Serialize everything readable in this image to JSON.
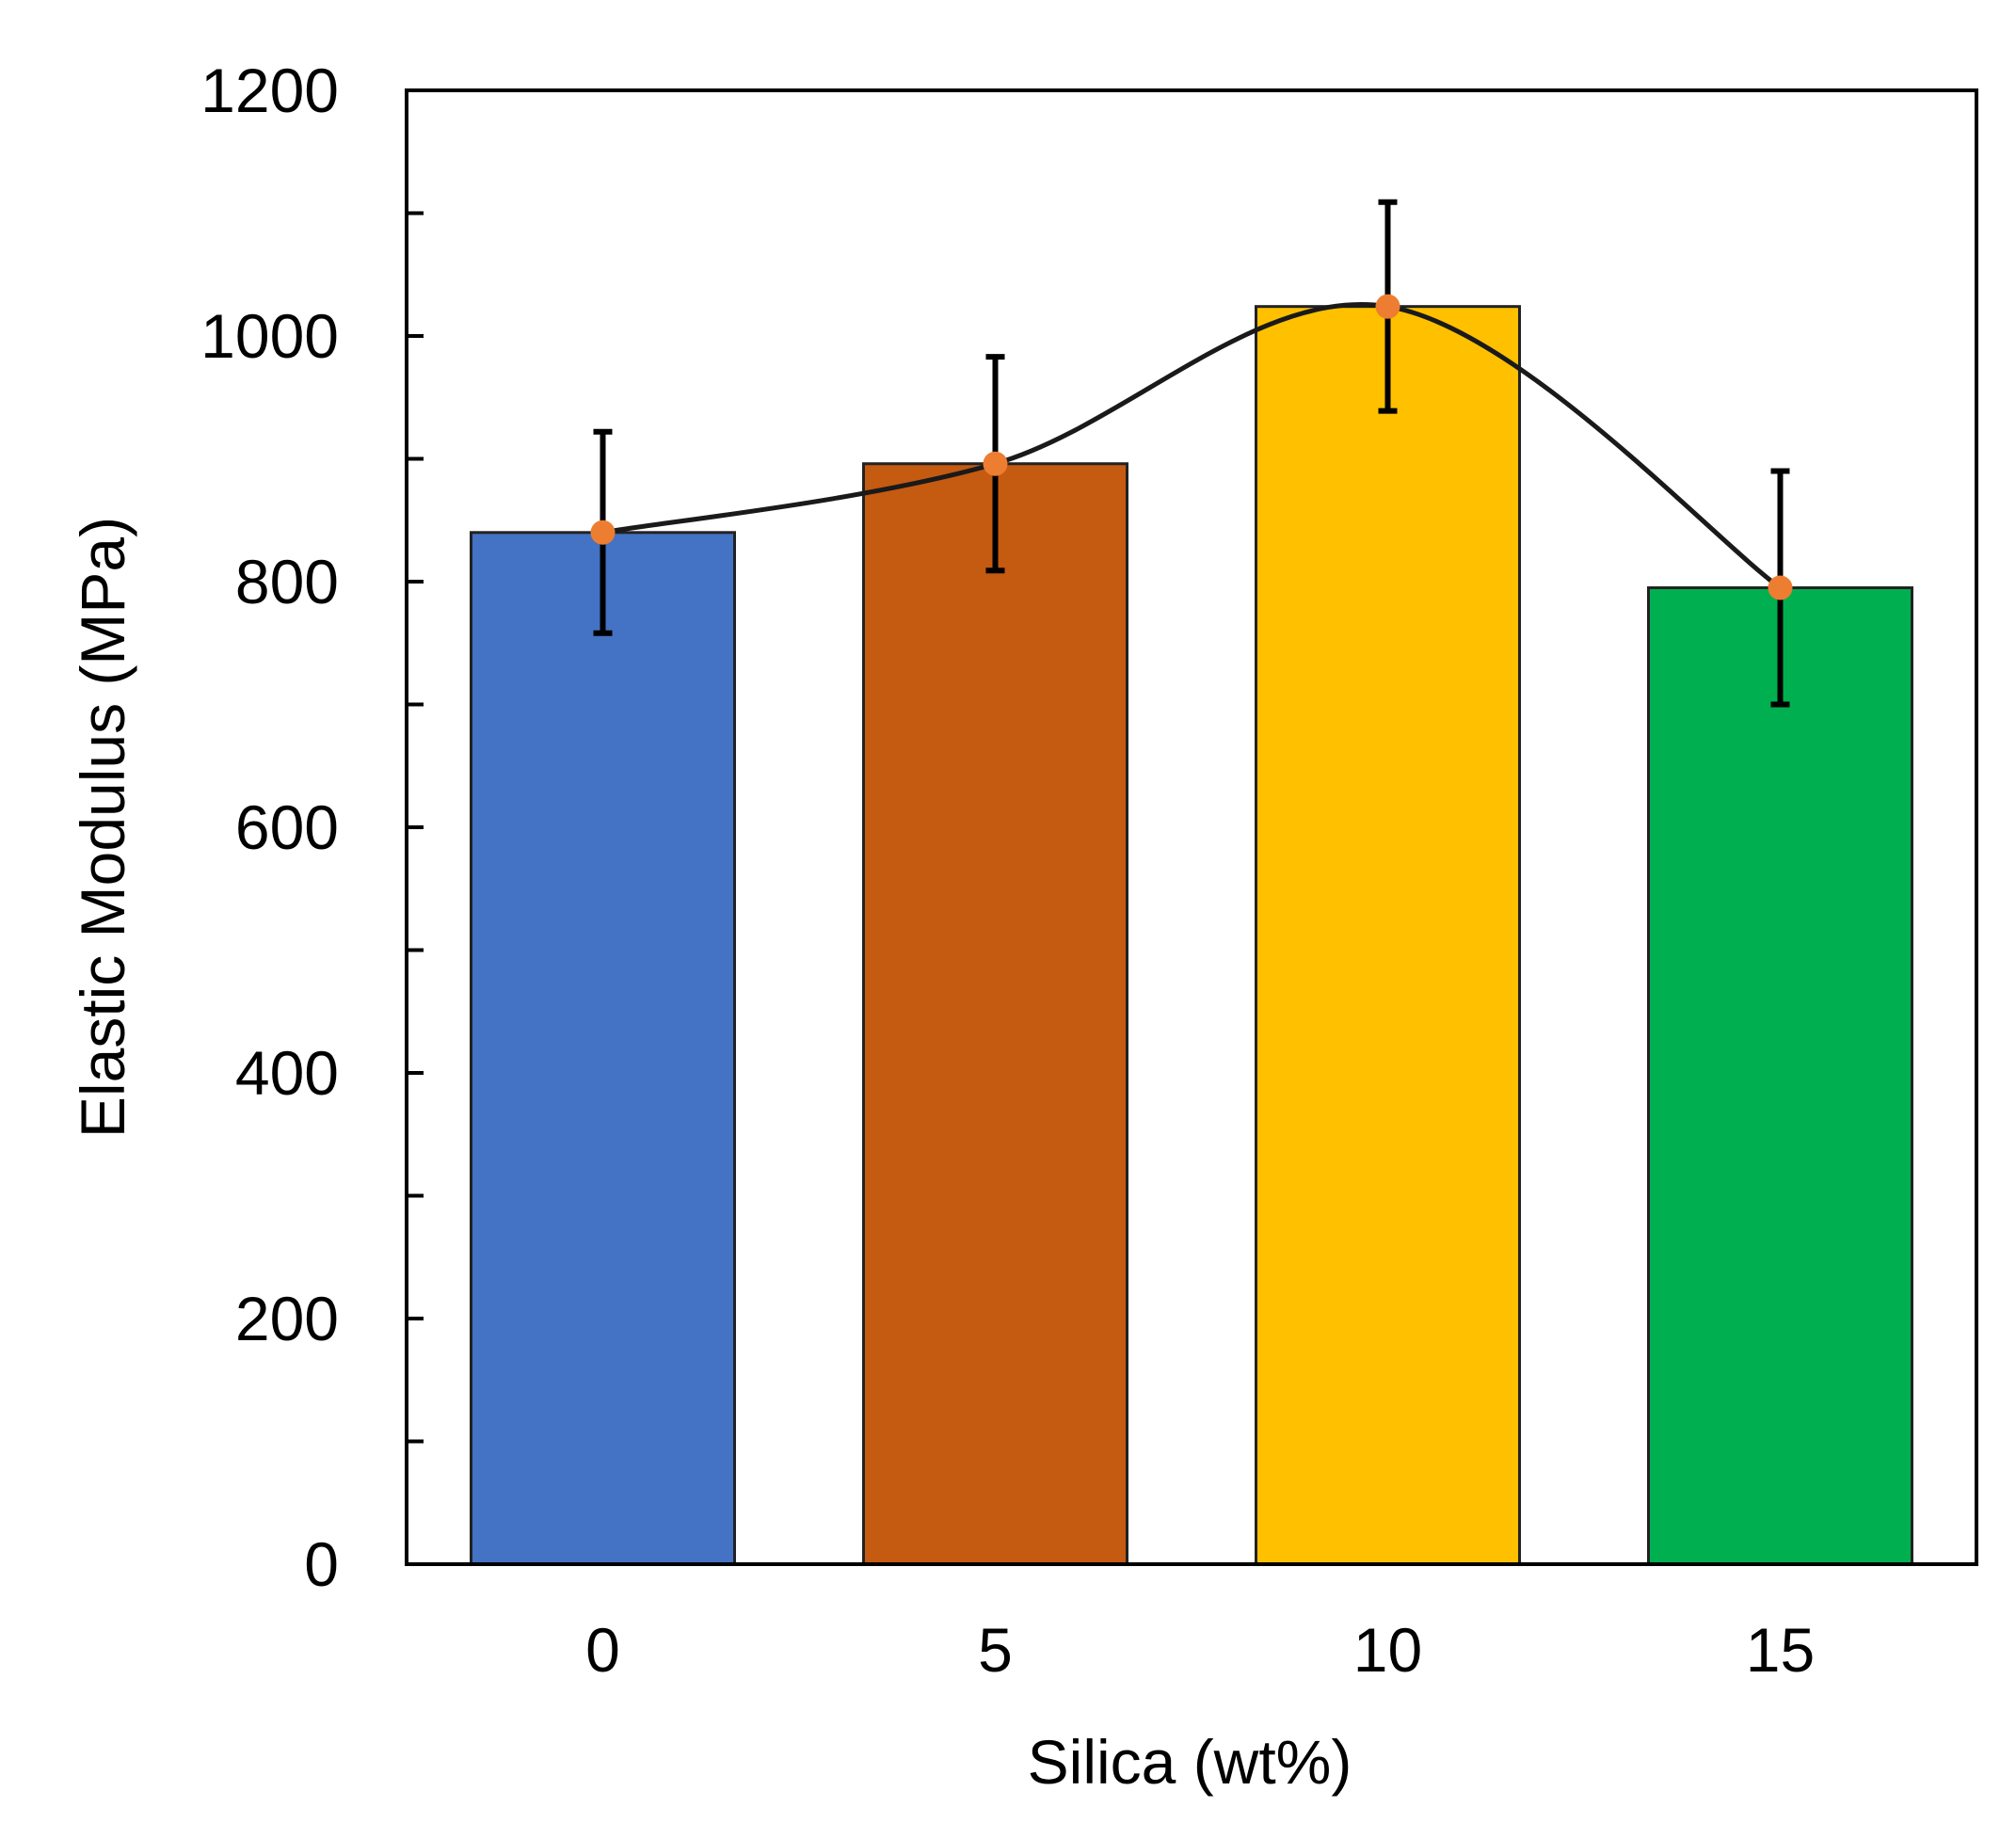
{
  "chart_data": {
    "type": "bar",
    "title": "",
    "xlabel": "Silica (wt%)",
    "ylabel": "Elastic Modulus (MPa)",
    "categories": [
      "0",
      "5",
      "10",
      "15"
    ],
    "values": [
      840,
      896,
      1024,
      795
    ],
    "error_low": [
      82,
      87,
      85,
      95
    ],
    "error_high": [
      82,
      87,
      85,
      95
    ],
    "ylim": [
      0,
      1200
    ],
    "yticks": [
      0,
      200,
      400,
      600,
      800,
      1000,
      1200
    ],
    "y_minor_step": 100,
    "grid": false,
    "legend": "none",
    "trend_line": "smooth curve through bar means",
    "colors": {
      "bars": [
        "#4472C4",
        "#C55A11",
        "#FFC000",
        "#00B050"
      ],
      "trend_line": "#1a1a1a",
      "trend_markers": "#ED7D31",
      "error_bars": "#000000",
      "axes": "#000000"
    }
  }
}
